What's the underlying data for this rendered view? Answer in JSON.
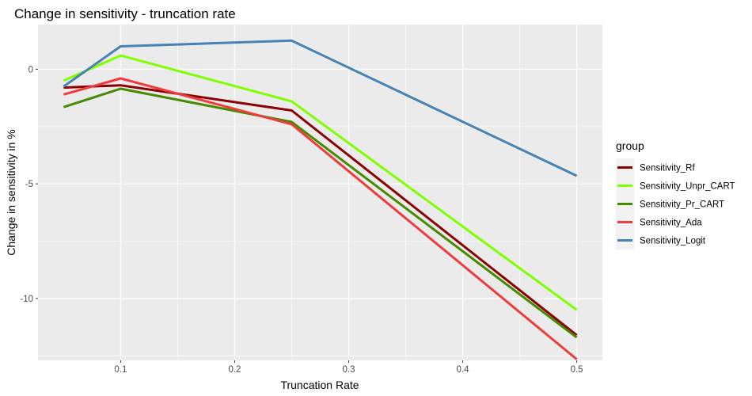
{
  "chart_data": {
    "type": "line",
    "title": "Change in sensitivity - truncation rate",
    "xlabel": "Truncation Rate",
    "ylabel": "Change in sensitivity in %",
    "x": [
      0.05,
      0.1,
      0.25,
      0.5
    ],
    "xlim": [
      0.0275,
      0.5225
    ],
    "ylim": [
      -12.7,
      1.95
    ],
    "xticks": [
      0.1,
      0.2,
      0.3,
      0.4,
      0.5
    ],
    "xtick_labels": [
      "0.1",
      "0.2",
      "0.3",
      "0.4",
      "0.5"
    ],
    "yticks": [
      0,
      -5,
      -10
    ],
    "ytick_labels": [
      "0",
      "-5",
      "-10"
    ],
    "grid": true,
    "background": "#ebebeb",
    "legend": {
      "title": "group",
      "position": "right"
    },
    "series": [
      {
        "name": "Sensitivity_Rf",
        "color": "#8b0000",
        "values": [
          -0.8,
          -0.7,
          -1.8,
          -11.6
        ]
      },
      {
        "name": "Sensitivity_Unpr_CART",
        "color": "#7fff00",
        "values": [
          -0.5,
          0.6,
          -1.4,
          -10.5
        ]
      },
      {
        "name": "Sensitivity_Pr_CART",
        "color": "#458b00",
        "values": [
          -1.65,
          -0.85,
          -2.3,
          -11.7
        ]
      },
      {
        "name": "Sensitivity_Ada",
        "color": "#ee3b3b",
        "values": [
          -1.1,
          -0.4,
          -2.4,
          -12.65
        ]
      },
      {
        "name": "Sensitivity_Logit",
        "color": "#4682b4",
        "values": [
          -0.75,
          1.0,
          1.25,
          -4.65
        ]
      }
    ]
  }
}
